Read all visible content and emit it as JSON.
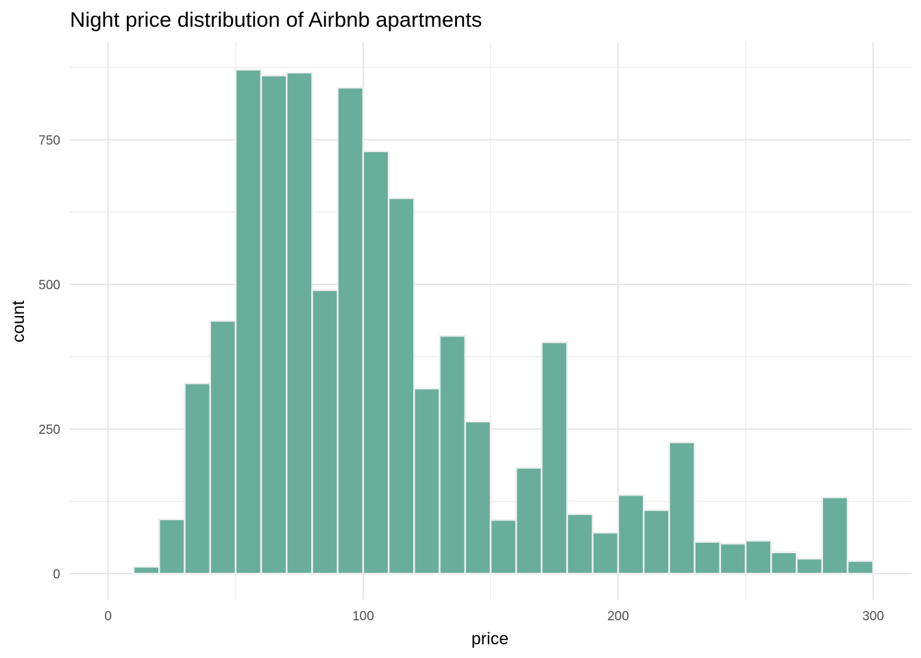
{
  "chart_data": {
    "type": "bar",
    "title": "Night price distribution of Airbnb apartments",
    "xlabel": "price",
    "ylabel": "count",
    "x_ticks": [
      0,
      100,
      200,
      300
    ],
    "y_ticks": [
      0,
      250,
      500,
      750
    ],
    "xlim": [
      -15,
      315
    ],
    "ylim": [
      -45,
      918
    ],
    "bin_width": 10,
    "bins": [
      {
        "x0": 10,
        "x1": 20,
        "count": 12
      },
      {
        "x0": 20,
        "x1": 30,
        "count": 94
      },
      {
        "x0": 30,
        "x1": 40,
        "count": 329
      },
      {
        "x0": 40,
        "x1": 50,
        "count": 437
      },
      {
        "x0": 50,
        "x1": 60,
        "count": 871
      },
      {
        "x0": 60,
        "x1": 70,
        "count": 861
      },
      {
        "x0": 70,
        "x1": 80,
        "count": 866
      },
      {
        "x0": 80,
        "x1": 90,
        "count": 490
      },
      {
        "x0": 90,
        "x1": 100,
        "count": 840
      },
      {
        "x0": 100,
        "x1": 110,
        "count": 730
      },
      {
        "x0": 110,
        "x1": 120,
        "count": 649
      },
      {
        "x0": 120,
        "x1": 130,
        "count": 320
      },
      {
        "x0": 130,
        "x1": 140,
        "count": 411
      },
      {
        "x0": 140,
        "x1": 150,
        "count": 263
      },
      {
        "x0": 150,
        "x1": 160,
        "count": 93
      },
      {
        "x0": 160,
        "x1": 170,
        "count": 183
      },
      {
        "x0": 170,
        "x1": 180,
        "count": 400
      },
      {
        "x0": 180,
        "x1": 190,
        "count": 103
      },
      {
        "x0": 190,
        "x1": 200,
        "count": 71
      },
      {
        "x0": 200,
        "x1": 210,
        "count": 136
      },
      {
        "x0": 210,
        "x1": 220,
        "count": 110
      },
      {
        "x0": 220,
        "x1": 230,
        "count": 227
      },
      {
        "x0": 230,
        "x1": 240,
        "count": 55
      },
      {
        "x0": 240,
        "x1": 250,
        "count": 52
      },
      {
        "x0": 250,
        "x1": 260,
        "count": 57
      },
      {
        "x0": 260,
        "x1": 270,
        "count": 37
      },
      {
        "x0": 270,
        "x1": 280,
        "count": 26
      },
      {
        "x0": 280,
        "x1": 290,
        "count": 132
      },
      {
        "x0": 290,
        "x1": 300,
        "count": 22
      }
    ],
    "colors": {
      "bar_fill": "#69ae9b",
      "bar_stroke": "#f0f0f0",
      "grid": "#e5e5e5",
      "background": "#ffffff"
    },
    "grid": true,
    "legend": "none"
  }
}
